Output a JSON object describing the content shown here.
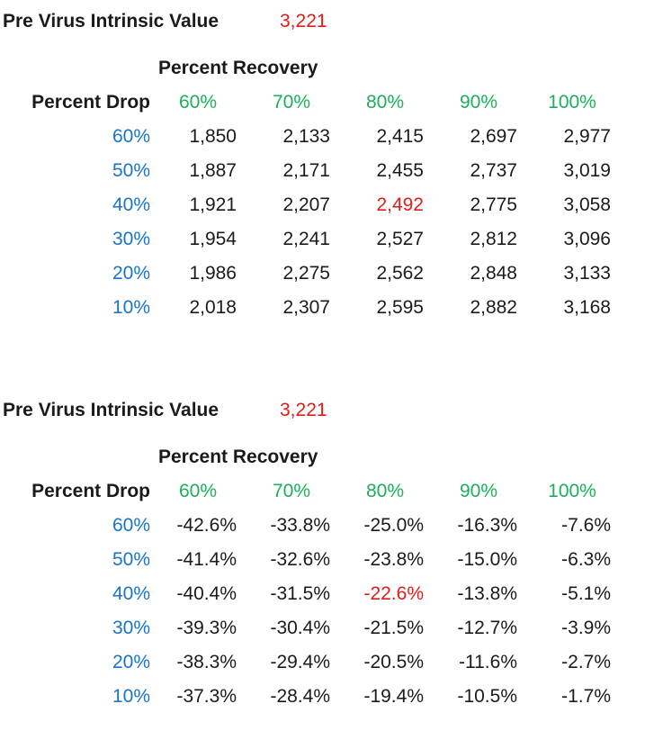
{
  "colors": {
    "highlight_red": "#dd1f1c",
    "header_green": "#1eae5c",
    "row_label_blue": "#1b74c5",
    "text": "#1b1b1b",
    "background": "#ffffff"
  },
  "tables": [
    {
      "title": "Pre Virus Intrinsic Value",
      "title_value": "3,221",
      "group_header": "Percent Recovery",
      "row_axis_label": "Percent Drop",
      "col_headers": [
        "60%",
        "70%",
        "80%",
        "90%",
        "100%"
      ],
      "rows": [
        {
          "label": "60%",
          "values": [
            "1,850",
            "2,133",
            "2,415",
            "2,697",
            "2,977"
          ]
        },
        {
          "label": "50%",
          "values": [
            "1,887",
            "2,171",
            "2,455",
            "2,737",
            "3,019"
          ]
        },
        {
          "label": "40%",
          "values": [
            "1,921",
            "2,207",
            "2,492",
            "2,775",
            "3,058"
          ]
        },
        {
          "label": "30%",
          "values": [
            "1,954",
            "2,241",
            "2,527",
            "2,812",
            "3,096"
          ]
        },
        {
          "label": "20%",
          "values": [
            "1,986",
            "2,275",
            "2,562",
            "2,848",
            "3,133"
          ]
        },
        {
          "label": "10%",
          "values": [
            "2,018",
            "2,307",
            "2,595",
            "2,882",
            "3,168"
          ]
        }
      ],
      "highlight": {
        "row": 2,
        "col": 2
      }
    },
    {
      "title": "Pre Virus Intrinsic Value",
      "title_value": "3,221",
      "group_header": "Percent Recovery",
      "row_axis_label": "Percent Drop",
      "col_headers": [
        "60%",
        "70%",
        "80%",
        "90%",
        "100%"
      ],
      "rows": [
        {
          "label": "60%",
          "values": [
            "-42.6%",
            "-33.8%",
            "-25.0%",
            "-16.3%",
            "-7.6%"
          ]
        },
        {
          "label": "50%",
          "values": [
            "-41.4%",
            "-32.6%",
            "-23.8%",
            "-15.0%",
            "-6.3%"
          ]
        },
        {
          "label": "40%",
          "values": [
            "-40.4%",
            "-31.5%",
            "-22.6%",
            "-13.8%",
            "-5.1%"
          ]
        },
        {
          "label": "30%",
          "values": [
            "-39.3%",
            "-30.4%",
            "-21.5%",
            "-12.7%",
            "-3.9%"
          ]
        },
        {
          "label": "20%",
          "values": [
            "-38.3%",
            "-29.4%",
            "-20.5%",
            "-11.6%",
            "-2.7%"
          ]
        },
        {
          "label": "10%",
          "values": [
            "-37.3%",
            "-28.4%",
            "-19.4%",
            "-10.5%",
            "-1.7%"
          ]
        }
      ],
      "highlight": {
        "row": 2,
        "col": 2
      }
    }
  ]
}
